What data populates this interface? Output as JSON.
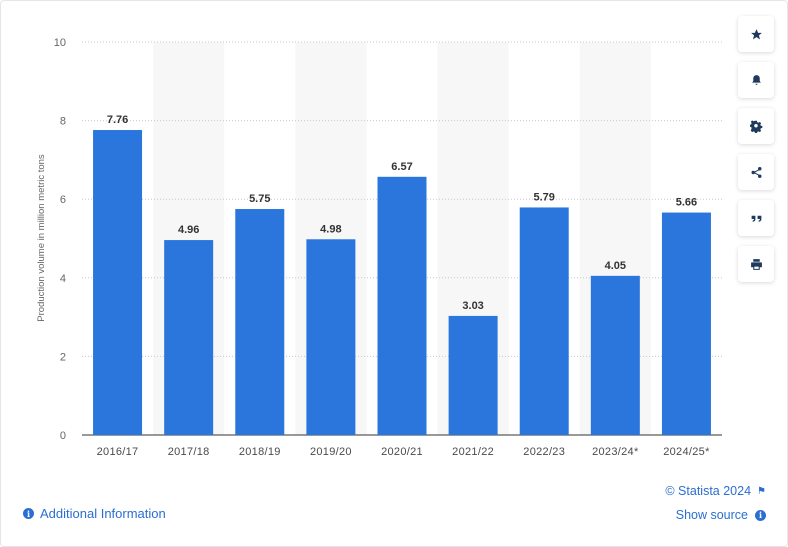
{
  "chart_data": {
    "type": "bar",
    "categories": [
      "2016/17",
      "2017/18",
      "2018/19",
      "2019/20",
      "2020/21",
      "2021/22",
      "2022/23",
      "2023/24*",
      "2024/25*"
    ],
    "values": [
      7.76,
      4.96,
      5.75,
      4.98,
      6.57,
      3.03,
      5.79,
      4.05,
      5.66
    ],
    "data_labels": [
      "7.76",
      "4.96",
      "5.75",
      "4.98",
      "6.57",
      "3.03",
      "5.79",
      "4.05",
      "5.66"
    ],
    "ylabel": "Production volume in million metric tons",
    "xlabel": "",
    "ylim": [
      0,
      10
    ],
    "yticks": [
      "0",
      "2",
      "4",
      "6",
      "8",
      "10"
    ],
    "grid": true,
    "colors": {
      "bar": "#2a76dd",
      "band": "#f7f7f7",
      "grid": "#c8c8c8"
    }
  },
  "toolbar": {
    "buttons": [
      {
        "name": "favorite-button",
        "icon": "star-icon"
      },
      {
        "name": "notification-button",
        "icon": "bell-icon"
      },
      {
        "name": "settings-button",
        "icon": "gear-icon"
      },
      {
        "name": "share-button",
        "icon": "share-icon"
      },
      {
        "name": "cite-button",
        "icon": "quote-icon"
      },
      {
        "name": "print-button",
        "icon": "printer-icon"
      }
    ]
  },
  "footer": {
    "additional_info": "Additional Information",
    "credit": "© Statista 2024",
    "show_source": "Show source"
  }
}
